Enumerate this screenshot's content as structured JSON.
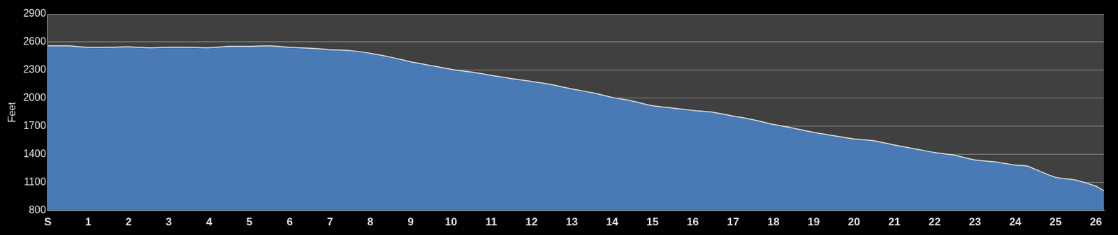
{
  "chart_data": {
    "type": "area",
    "y_label": "Feet",
    "x": [
      0,
      0.5,
      1,
      1.5,
      2,
      2.5,
      3,
      3.5,
      4,
      4.5,
      5,
      5.5,
      6,
      6.5,
      7,
      7.5,
      8,
      8.5,
      9,
      9.5,
      10,
      10.5,
      11,
      11.5,
      12,
      12.5,
      13,
      13.5,
      14,
      14.5,
      15,
      15.5,
      16,
      16.5,
      17,
      17.5,
      18,
      18.5,
      19,
      19.5,
      20,
      20.5,
      21,
      21.5,
      22,
      22.5,
      23,
      23.5,
      24,
      24.3,
      24.5,
      25,
      25.5,
      26,
      26.2
    ],
    "values": [
      2560,
      2560,
      2545,
      2545,
      2550,
      2540,
      2545,
      2545,
      2540,
      2555,
      2555,
      2560,
      2545,
      2535,
      2520,
      2510,
      2480,
      2440,
      2390,
      2350,
      2310,
      2280,
      2245,
      2210,
      2180,
      2145,
      2100,
      2060,
      2010,
      1970,
      1920,
      1895,
      1870,
      1850,
      1810,
      1770,
      1720,
      1680,
      1635,
      1600,
      1565,
      1545,
      1500,
      1460,
      1420,
      1390,
      1340,
      1320,
      1285,
      1275,
      1240,
      1155,
      1125,
      1060,
      1010
    ],
    "color": "#4a7ab5",
    "xlim": [
      0,
      26.2
    ],
    "xticks": [
      {
        "value": 0,
        "label": "S"
      },
      1,
      2,
      3,
      4,
      5,
      6,
      7,
      8,
      9,
      10,
      11,
      12,
      13,
      14,
      15,
      16,
      17,
      18,
      19,
      20,
      21,
      22,
      23,
      24,
      25,
      26
    ],
    "ylim": [
      800,
      2900
    ],
    "yticks": [
      800,
      1100,
      1400,
      1700,
      2000,
      2300,
      2600,
      2900
    ],
    "grid": true
  }
}
